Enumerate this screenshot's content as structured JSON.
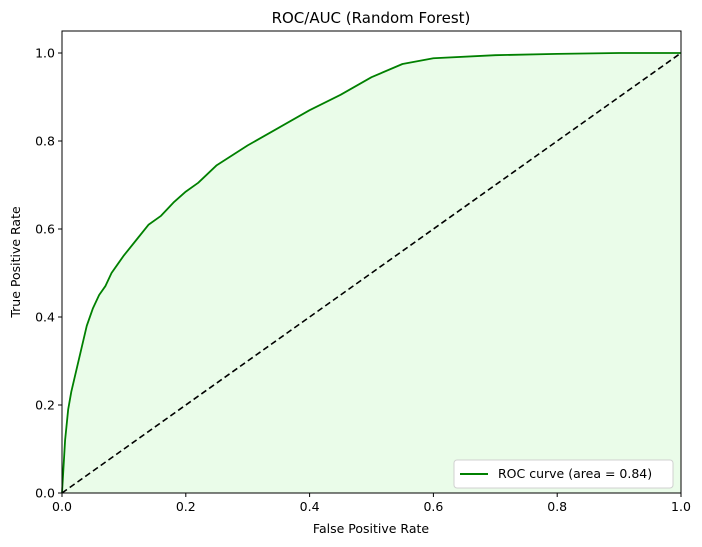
{
  "chart_data": {
    "type": "line",
    "title": "ROC/AUC (Random Forest)",
    "xlabel": "False Positive Rate",
    "ylabel": "True Positive Rate",
    "xlim": [
      0.0,
      1.0
    ],
    "ylim": [
      0.0,
      1.05
    ],
    "xticks": [
      "0.0",
      "0.2",
      "0.4",
      "0.6",
      "0.8",
      "1.0"
    ],
    "yticks": [
      "0.0",
      "0.2",
      "0.4",
      "0.6",
      "0.8",
      "1.0"
    ],
    "grid": false,
    "legend_position": "lower right",
    "fill_color": "#eafce9",
    "series": [
      {
        "name": "ROC curve (area = 0.84)",
        "color": "#008000",
        "style": "solid",
        "filled": true,
        "x": [
          0.0,
          0.005,
          0.01,
          0.015,
          0.02,
          0.03,
          0.04,
          0.05,
          0.06,
          0.07,
          0.08,
          0.09,
          0.1,
          0.12,
          0.14,
          0.16,
          0.18,
          0.2,
          0.22,
          0.25,
          0.3,
          0.35,
          0.4,
          0.45,
          0.5,
          0.55,
          0.6,
          0.7,
          0.8,
          0.9,
          1.0
        ],
        "y": [
          0.0,
          0.12,
          0.19,
          0.23,
          0.26,
          0.32,
          0.38,
          0.42,
          0.45,
          0.47,
          0.5,
          0.52,
          0.54,
          0.575,
          0.61,
          0.63,
          0.66,
          0.685,
          0.705,
          0.745,
          0.79,
          0.83,
          0.87,
          0.905,
          0.945,
          0.975,
          0.988,
          0.995,
          0.998,
          1.0,
          1.0
        ]
      },
      {
        "name": "",
        "color": "#000000",
        "style": "dashed",
        "filled": false,
        "x": [
          0.0,
          1.0
        ],
        "y": [
          0.0,
          1.0
        ]
      }
    ]
  }
}
